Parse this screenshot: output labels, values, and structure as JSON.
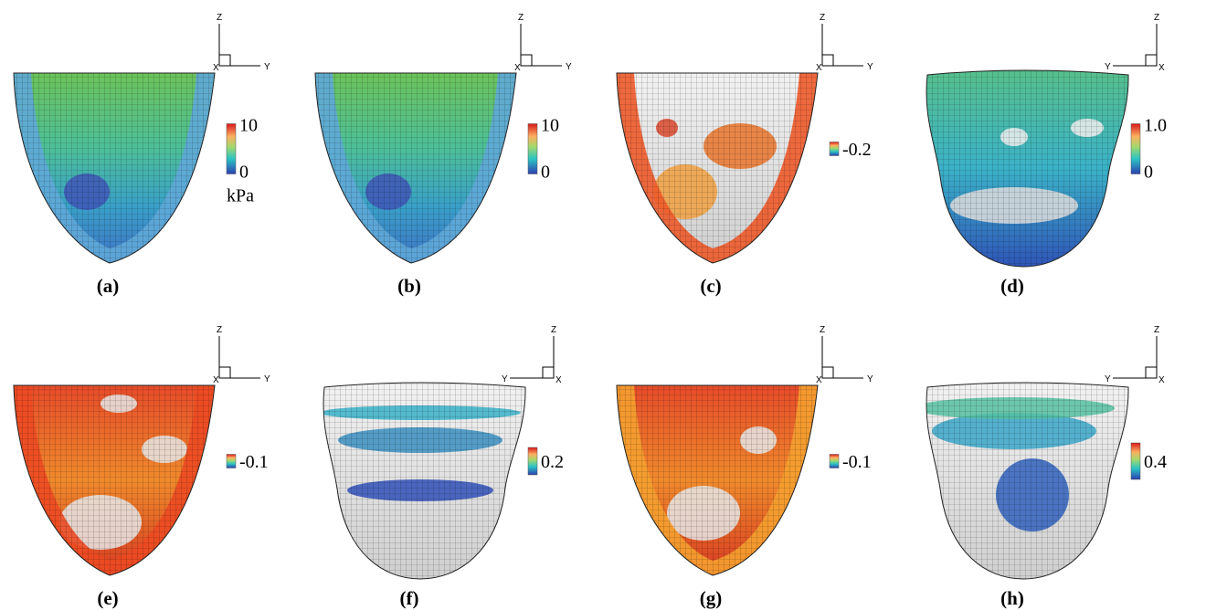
{
  "panels": [
    {
      "label": "(a)",
      "axes": {
        "z": "Z",
        "x": "X",
        "y": "Y"
      },
      "colorbar": [
        "10",
        "0",
        "kPa"
      ]
    },
    {
      "label": "(b)",
      "axes": {
        "z": "Z",
        "x": "X",
        "y": "Y"
      },
      "colorbar": [
        "10",
        "0"
      ]
    },
    {
      "label": "(c)",
      "axes": {
        "z": "Z",
        "x": "X",
        "y": "Y"
      },
      "colorbar": [
        "-0.2"
      ]
    },
    {
      "label": "(d)",
      "axes": {
        "z": "Z",
        "x": "X",
        "y": "Y"
      },
      "colorbar": [
        "1.0",
        "0"
      ]
    },
    {
      "label": "(e)",
      "axes": {
        "z": "Z",
        "x": "X",
        "y": "Y"
      },
      "colorbar": [
        "-0.1"
      ]
    },
    {
      "label": "(f)",
      "axes": {
        "z": "Z",
        "x": "X",
        "y": "Y"
      },
      "colorbar": [
        "0.2"
      ]
    },
    {
      "label": "(g)",
      "axes": {
        "z": "Z",
        "x": "X",
        "y": "Y"
      },
      "colorbar": [
        "-0.1"
      ]
    },
    {
      "label": "(h)",
      "axes": {
        "z": "Z",
        "x": "X",
        "y": "Y"
      },
      "colorbar": [
        "0.4"
      ]
    }
  ]
}
